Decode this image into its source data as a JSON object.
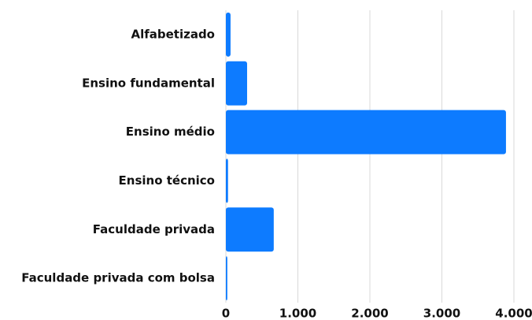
{
  "chart_data": {
    "type": "barh",
    "categories": [
      "Alfabetizado",
      "Ensino fundamental",
      "Ensino médio",
      "Ensino técnico",
      "Faculdade privada",
      "Faculdade privada com bolsa"
    ],
    "values": [
      65,
      295,
      3890,
      30,
      665,
      20
    ],
    "color": "#0d7bff",
    "xlim": [
      0,
      4000
    ],
    "xticks": [
      0,
      {
        "value": 1000,
        "label": "1.000"
      },
      {
        "value": 2000,
        "label": "2.000"
      },
      {
        "value": 3000,
        "label": "3.000"
      },
      {
        "value": 4000,
        "label": "4.000"
      }
    ],
    "grid": true
  }
}
